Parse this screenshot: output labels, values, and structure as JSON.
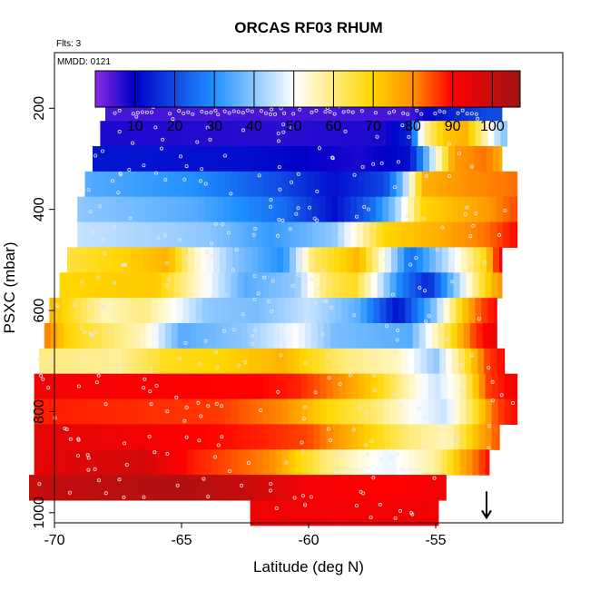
{
  "chart_data": {
    "type": "heatmap",
    "title": "ORCAS RF03 RHUM",
    "flights_label": "Flts: 3",
    "date_label": "MMDD: 0121",
    "xlabel": "Latitude (deg N)",
    "ylabel": "PSXC (mbar)",
    "xlim": [
      -70,
      -50
    ],
    "ylim": [
      1020,
      90
    ],
    "x_ticks": [
      -70,
      -65,
      -60,
      -55
    ],
    "y_ticks": [
      200,
      400,
      600,
      800,
      1000
    ],
    "grid": false,
    "colorbar": {
      "position": "top-inside",
      "range": [
        0,
        107
      ],
      "ticks": [
        10,
        20,
        30,
        40,
        50,
        60,
        70,
        80,
        90,
        100
      ],
      "colors": [
        "#8a2be2",
        "#0000c8",
        "#1e90ff",
        "#ffffff",
        "#ffd700",
        "#ff8c00",
        "#ff0000",
        "#a01414"
      ]
    },
    "layers": [
      {
        "p": 200,
        "x0": -68.0,
        "x1": -52.4,
        "stops": [
          [
            -68.0,
            5
          ],
          [
            -56.0,
            5
          ],
          [
            -55.0,
            12
          ],
          [
            -53.0,
            20
          ],
          [
            -52.5,
            20
          ]
        ]
      },
      {
        "p": 250,
        "x0": -68.2,
        "x1": -52.2,
        "stops": [
          [
            -68.2,
            8
          ],
          [
            -61.0,
            7
          ],
          [
            -57.0,
            8
          ],
          [
            -56.0,
            15
          ],
          [
            -55.5,
            55
          ],
          [
            -54.7,
            72
          ],
          [
            -53.8,
            75
          ],
          [
            -52.8,
            50
          ],
          [
            -52.4,
            40
          ]
        ]
      },
      {
        "p": 300,
        "x0": -68.5,
        "x1": -52.4,
        "stops": [
          [
            -68.5,
            13
          ],
          [
            -62.5,
            12
          ],
          [
            -58.0,
            8
          ],
          [
            -56.0,
            12
          ],
          [
            -55.0,
            50
          ],
          [
            -54.3,
            78
          ],
          [
            -53.0,
            82
          ],
          [
            -52.4,
            75
          ]
        ]
      },
      {
        "p": 350,
        "x0": -68.8,
        "x1": -51.8,
        "stops": [
          [
            -68.8,
            35
          ],
          [
            -64.5,
            30
          ],
          [
            -61.0,
            20
          ],
          [
            -59.0,
            12
          ],
          [
            -57.0,
            20
          ],
          [
            -56.3,
            38
          ],
          [
            -55.5,
            75
          ],
          [
            -53.5,
            80
          ],
          [
            -51.8,
            82
          ]
        ]
      },
      {
        "p": 400,
        "x0": -69.1,
        "x1": -51.8,
        "stops": [
          [
            -69.1,
            40
          ],
          [
            -64.5,
            35
          ],
          [
            -61.0,
            25
          ],
          [
            -59.0,
            12
          ],
          [
            -57.5,
            25
          ],
          [
            -56.6,
            40
          ],
          [
            -55.5,
            70
          ],
          [
            -53.0,
            78
          ],
          [
            -51.8,
            85
          ]
        ]
      },
      {
        "p": 450,
        "x0": -69.1,
        "x1": -51.8,
        "stops": [
          [
            -69.1,
            45
          ],
          [
            -64.0,
            40
          ],
          [
            -61.5,
            32
          ],
          [
            -59.0,
            40
          ],
          [
            -57.0,
            70
          ],
          [
            -55.0,
            75
          ],
          [
            -53.0,
            82
          ],
          [
            -51.8,
            90
          ]
        ]
      },
      {
        "p": 500,
        "x0": -69.5,
        "x1": -52.4,
        "stops": [
          [
            -69.5,
            65
          ],
          [
            -67.5,
            70
          ],
          [
            -65.5,
            75
          ],
          [
            -64.5,
            55
          ],
          [
            -63.0,
            40
          ],
          [
            -61.0,
            30
          ],
          [
            -59.8,
            62
          ],
          [
            -58.0,
            75
          ],
          [
            -57.0,
            50
          ],
          [
            -56.0,
            25
          ],
          [
            -54.5,
            45
          ],
          [
            -53.0,
            70
          ],
          [
            -52.4,
            95
          ]
        ]
      },
      {
        "p": 550,
        "x0": -69.8,
        "x1": -52.4,
        "stops": [
          [
            -69.8,
            70
          ],
          [
            -66.0,
            72
          ],
          [
            -64.5,
            55
          ],
          [
            -62.5,
            35
          ],
          [
            -60.5,
            40
          ],
          [
            -59.3,
            62
          ],
          [
            -58.2,
            68
          ],
          [
            -56.5,
            30
          ],
          [
            -55.3,
            15
          ],
          [
            -54.0,
            45
          ],
          [
            -53.0,
            70
          ],
          [
            -52.4,
            80
          ]
        ]
      },
      {
        "p": 600,
        "x0": -70.2,
        "x1": -52.6,
        "stops": [
          [
            -70.2,
            75
          ],
          [
            -68.0,
            55
          ],
          [
            -66.5,
            60
          ],
          [
            -64.0,
            40
          ],
          [
            -62.0,
            38
          ],
          [
            -60.0,
            45
          ],
          [
            -58.0,
            35
          ],
          [
            -56.5,
            12
          ],
          [
            -55.0,
            40
          ],
          [
            -54.0,
            70
          ],
          [
            -53.2,
            85
          ],
          [
            -52.6,
            90
          ]
        ]
      },
      {
        "p": 650,
        "x0": -70.4,
        "x1": -52.6,
        "stops": [
          [
            -70.4,
            82
          ],
          [
            -69.5,
            70
          ],
          [
            -66.5,
            55
          ],
          [
            -65.0,
            35
          ],
          [
            -62.5,
            40
          ],
          [
            -60.5,
            50
          ],
          [
            -59.0,
            38
          ],
          [
            -56.0,
            35
          ],
          [
            -55.0,
            55
          ],
          [
            -53.5,
            85
          ],
          [
            -52.6,
            95
          ]
        ]
      },
      {
        "p": 700,
        "x0": -70.6,
        "x1": -52.3,
        "stops": [
          [
            -70.6,
            60
          ],
          [
            -67.5,
            58
          ],
          [
            -65.5,
            68
          ],
          [
            -63.5,
            70
          ],
          [
            -61.0,
            75
          ],
          [
            -58.5,
            60
          ],
          [
            -56.5,
            55
          ],
          [
            -55.0,
            40
          ],
          [
            -54.3,
            55
          ],
          [
            -53.0,
            85
          ],
          [
            -52.3,
            90
          ]
        ]
      },
      {
        "p": 750,
        "x0": -70.8,
        "x1": -51.8,
        "stops": [
          [
            -70.8,
            92
          ],
          [
            -62.0,
            90
          ],
          [
            -60.5,
            88
          ],
          [
            -58.8,
            80
          ],
          [
            -57.3,
            70
          ],
          [
            -56.0,
            55
          ],
          [
            -55.0,
            45
          ],
          [
            -54.0,
            55
          ],
          [
            -53.0,
            85
          ],
          [
            -51.8,
            92
          ]
        ]
      },
      {
        "p": 800,
        "x0": -70.8,
        "x1": -51.8,
        "stops": [
          [
            -70.8,
            88
          ],
          [
            -63.5,
            86
          ],
          [
            -61.0,
            80
          ],
          [
            -59.3,
            70
          ],
          [
            -57.5,
            62
          ],
          [
            -55.8,
            50
          ],
          [
            -54.6,
            45
          ],
          [
            -53.5,
            65
          ],
          [
            -52.6,
            85
          ],
          [
            -51.8,
            90
          ]
        ]
      },
      {
        "p": 850,
        "x0": -70.8,
        "x1": -52.5,
        "stops": [
          [
            -70.8,
            95
          ],
          [
            -66.5,
            92
          ],
          [
            -62.0,
            88
          ],
          [
            -60.0,
            85
          ],
          [
            -58.3,
            75
          ],
          [
            -56.0,
            60
          ],
          [
            -54.5,
            55
          ],
          [
            -53.5,
            72
          ],
          [
            -52.5,
            85
          ]
        ]
      },
      {
        "p": 900,
        "x0": -70.8,
        "x1": -52.9,
        "stops": [
          [
            -70.8,
            95
          ],
          [
            -66.5,
            98
          ],
          [
            -64.5,
            88
          ],
          [
            -61.5,
            80
          ],
          [
            -59.5,
            62
          ],
          [
            -57.8,
            52
          ],
          [
            -56.8,
            48
          ],
          [
            -55.0,
            58
          ],
          [
            -54.0,
            75
          ],
          [
            -53.2,
            85
          ],
          [
            -52.9,
            90
          ]
        ]
      },
      {
        "p": 950,
        "x0": -71.0,
        "x1": -54.6,
        "stops": [
          [
            -71.0,
            100
          ],
          [
            -65.0,
            104
          ],
          [
            -62.5,
            100
          ],
          [
            -60.0,
            92
          ],
          [
            -57.0,
            90
          ],
          [
            -54.6,
            92
          ]
        ]
      },
      {
        "p": 1000,
        "x0": -62.3,
        "x1": -54.9,
        "stops": [
          [
            -62.3,
            93
          ],
          [
            -58.0,
            92
          ],
          [
            -54.9,
            93
          ]
        ]
      }
    ],
    "annotations": [
      {
        "type": "arrow-down",
        "x": -53.0,
        "p_from": 958,
        "p_to": 1010
      }
    ]
  }
}
